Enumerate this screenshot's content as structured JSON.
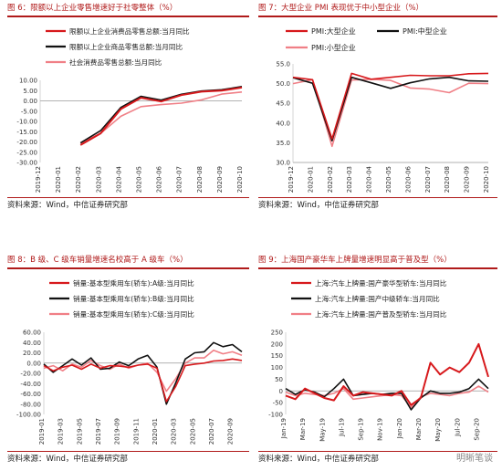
{
  "figures": [
    {
      "title": "图 6：限额以上企业零售增速好于社零整体（%）",
      "source": "资料来源：Wind，中信证券研究部"
    },
    {
      "title": "图 7：大型企业 PMI 表现优于中小型企业（%）",
      "source": "资料来源：Wind，中信证券研究部"
    },
    {
      "title": "图 8：B 级、C 级车销量增速名校高于 A 级车（%）",
      "source": "资料来源：Wind，中信证券研究部"
    },
    {
      "title": "图 9：上海国产豪华车上牌量增速明显高于普及型（%）",
      "source": "资料来源：Wind，中信证券研究部"
    }
  ],
  "watermark": "明晰笔谈",
  "chart_data": [
    {
      "type": "line",
      "x": [
        "2019-12",
        "2020-01",
        "2020-02",
        "2020-03",
        "2020-04",
        "2020-05",
        "2020-06",
        "2020-07",
        "2020-08",
        "2020-09",
        "2020-10"
      ],
      "xticks": [
        "2019-12",
        "2020-01",
        "2020-02",
        "2020-03",
        "2020-04",
        "2020-05",
        "2020-06",
        "2020-07",
        "2020-08",
        "2020-09",
        "2020-10"
      ],
      "ylim": [
        -30,
        10
      ],
      "yticks": [
        10,
        5,
        0,
        -5,
        -10,
        -15,
        -20,
        -25,
        -30
      ],
      "ytick_labels": [
        "10.00",
        "5.00",
        "0.00",
        "-5.00",
        "-10.00",
        "-15.00",
        "-20.00",
        "-25.00",
        "-30.00"
      ],
      "legend_position": "top-left",
      "series": [
        {
          "name": "限额以上企业消费品零售总额:当月同比",
          "color": "#d7191c",
          "width": 2,
          "values": [
            null,
            null,
            -21.5,
            -15.8,
            -4.0,
            1.5,
            -0.3,
            2.8,
            4.5,
            5.0,
            6.5
          ]
        },
        {
          "name": "限额以上企业商品零售总额:当月同比",
          "color": "#111111",
          "width": 1.6,
          "values": [
            null,
            null,
            -20.5,
            -14.5,
            -3.2,
            2.2,
            0.4,
            3.2,
            4.8,
            5.4,
            7.0
          ]
        },
        {
          "name": "社会消费品零售总额:当月同比",
          "color": "#f07f86",
          "width": 1.6,
          "values": [
            null,
            null,
            -20.5,
            -15.8,
            -7.5,
            -2.8,
            -1.8,
            -1.1,
            0.5,
            3.3,
            4.3
          ]
        }
      ]
    },
    {
      "type": "line",
      "x": [
        "2019-12",
        "2020-01",
        "2020-02",
        "2020-03",
        "2020-04",
        "2020-05",
        "2020-06",
        "2020-07",
        "2020-08",
        "2020-09",
        "2020-10"
      ],
      "xticks": [
        "2019-12",
        "2020-01",
        "2020-02",
        "2020-03",
        "2020-04",
        "2020-05",
        "2020-06",
        "2020-07",
        "2020-08",
        "2020-09",
        "2020-10"
      ],
      "ylim": [
        30,
        55
      ],
      "yticks": [
        55,
        50,
        45,
        40,
        35,
        30
      ],
      "ytick_labels": [
        "55.0",
        "50.0",
        "45.0",
        "40.0",
        "35.0",
        "30.0"
      ],
      "legend_position": "top",
      "series": [
        {
          "name": "PMI:大型企业",
          "color": "#d7191c",
          "width": 1.6,
          "values": [
            51.6,
            51.0,
            36.0,
            52.6,
            51.1,
            51.6,
            52.1,
            52.0,
            52.0,
            52.5,
            52.6
          ]
        },
        {
          "name": "PMI:中型企业",
          "color": "#111111",
          "width": 1.6,
          "values": [
            51.5,
            50.1,
            35.5,
            51.6,
            50.2,
            48.8,
            50.2,
            51.2,
            51.6,
            50.7,
            50.6
          ]
        },
        {
          "name": "PMI:小型企业",
          "color": "#f07f86",
          "width": 1.6,
          "values": [
            50.0,
            51.0,
            34.1,
            50.9,
            51.1,
            50.8,
            48.9,
            48.6,
            47.7,
            50.1,
            50.0
          ]
        }
      ]
    },
    {
      "type": "line",
      "x": [
        "2019-01",
        "2019-02",
        "2019-03",
        "2019-04",
        "2019-05",
        "2019-06",
        "2019-07",
        "2019-08",
        "2019-09",
        "2019-10",
        "2019-11",
        "2019-12",
        "2020-01",
        "2020-02",
        "2020-03",
        "2020-04",
        "2020-05",
        "2020-06",
        "2020-07",
        "2020-08",
        "2020-09",
        "2020-10"
      ],
      "xticks": [
        "2019-01",
        "2019-03",
        "2019-05",
        "2019-07",
        "2019-09",
        "2019-11",
        "2020-01",
        "2020-03",
        "2020-05",
        "2020-07",
        "2020-09"
      ],
      "ylim": [
        -100,
        60
      ],
      "yticks": [
        60,
        40,
        20,
        0,
        -20,
        -40,
        -60,
        -80,
        -100
      ],
      "ytick_labels": [
        "60.00",
        "40.00",
        "20.00",
        "0.00",
        "-20.00",
        "-40.00",
        "-60.00",
        "-80.00",
        "-100.00"
      ],
      "legend_position": "top-left",
      "series": [
        {
          "name": "销量:基本型乘用车(轿车):A级:当月同比",
          "color": "#d7191c",
          "width": 1.6,
          "values": [
            -5,
            -15,
            -8,
            -4,
            -12,
            -2,
            -10,
            -5,
            -6,
            -8,
            -4,
            -2,
            -10,
            -75,
            -45,
            -5,
            -2,
            0,
            4,
            5,
            8,
            5
          ]
        },
        {
          "name": "销量:基本型乘用车(轿车):B级:当月同比",
          "color": "#111111",
          "width": 1.6,
          "values": [
            -2,
            -18,
            -5,
            8,
            -4,
            10,
            -12,
            -10,
            2,
            -5,
            8,
            15,
            -8,
            -80,
            -38,
            8,
            20,
            22,
            40,
            32,
            36,
            22
          ]
        },
        {
          "name": "销量:基本型乘用车(轿车):C级:当月同比",
          "color": "#f07f86",
          "width": 1.6,
          "values": [
            -10,
            -5,
            -15,
            -2,
            -8,
            5,
            -5,
            -12,
            -2,
            -10,
            -4,
            0,
            -18,
            -55,
            -30,
            0,
            10,
            10,
            25,
            18,
            22,
            15
          ]
        }
      ]
    },
    {
      "type": "line",
      "x": [
        "Jan-19",
        "Feb-19",
        "Mar-19",
        "Apr-19",
        "May-19",
        "Jun-19",
        "Jul-19",
        "Aug-19",
        "Sep-19",
        "Oct-19",
        "Nov-19",
        "Dec-19",
        "Jan-20",
        "Feb-20",
        "Mar-20",
        "Apr-20",
        "May-20",
        "Jun-20",
        "Jul-20",
        "Aug-20",
        "Sep-20",
        "Oct-20"
      ],
      "xticks": [
        "Jan-19",
        "Mar-19",
        "May-19",
        "Jul-19",
        "Sep-19",
        "Nov-19",
        "Jan-20",
        "Mar-20",
        "May-20",
        "Jul-20",
        "Sep-20"
      ],
      "ylim": [
        -100,
        250
      ],
      "yticks": [
        250,
        200,
        150,
        100,
        50,
        0,
        -50,
        -100
      ],
      "ytick_labels": [
        "250",
        "200",
        "150",
        "100",
        "50",
        "0",
        "-50",
        "-100"
      ],
      "legend_position": "top-left",
      "series": [
        {
          "name": "上海:汽车上牌量:国产豪华型轿车:当月同比",
          "color": "#d7191c",
          "width": 2,
          "values": [
            -20,
            -35,
            10,
            -10,
            -30,
            -40,
            20,
            -20,
            -5,
            -10,
            -15,
            -20,
            0,
            -60,
            -30,
            120,
            70,
            100,
            80,
            120,
            200,
            60
          ]
        },
        {
          "name": "上海:汽车上牌量:国产中级轿车:当月同比",
          "color": "#111111",
          "width": 1.6,
          "values": [
            10,
            -15,
            5,
            -5,
            -25,
            10,
            50,
            -20,
            -15,
            -10,
            -15,
            -10,
            -10,
            -80,
            -30,
            0,
            -10,
            -10,
            -5,
            10,
            50,
            10
          ]
        },
        {
          "name": "上海:汽车上牌量:国产普及型轿车:当月同比",
          "color": "#f07f86",
          "width": 1.6,
          "values": [
            -5,
            -20,
            -10,
            -15,
            -20,
            -10,
            10,
            -35,
            -30,
            -25,
            -20,
            -15,
            -20,
            -70,
            -25,
            -10,
            -15,
            -20,
            -10,
            -5,
            20,
            -5
          ]
        }
      ]
    }
  ]
}
